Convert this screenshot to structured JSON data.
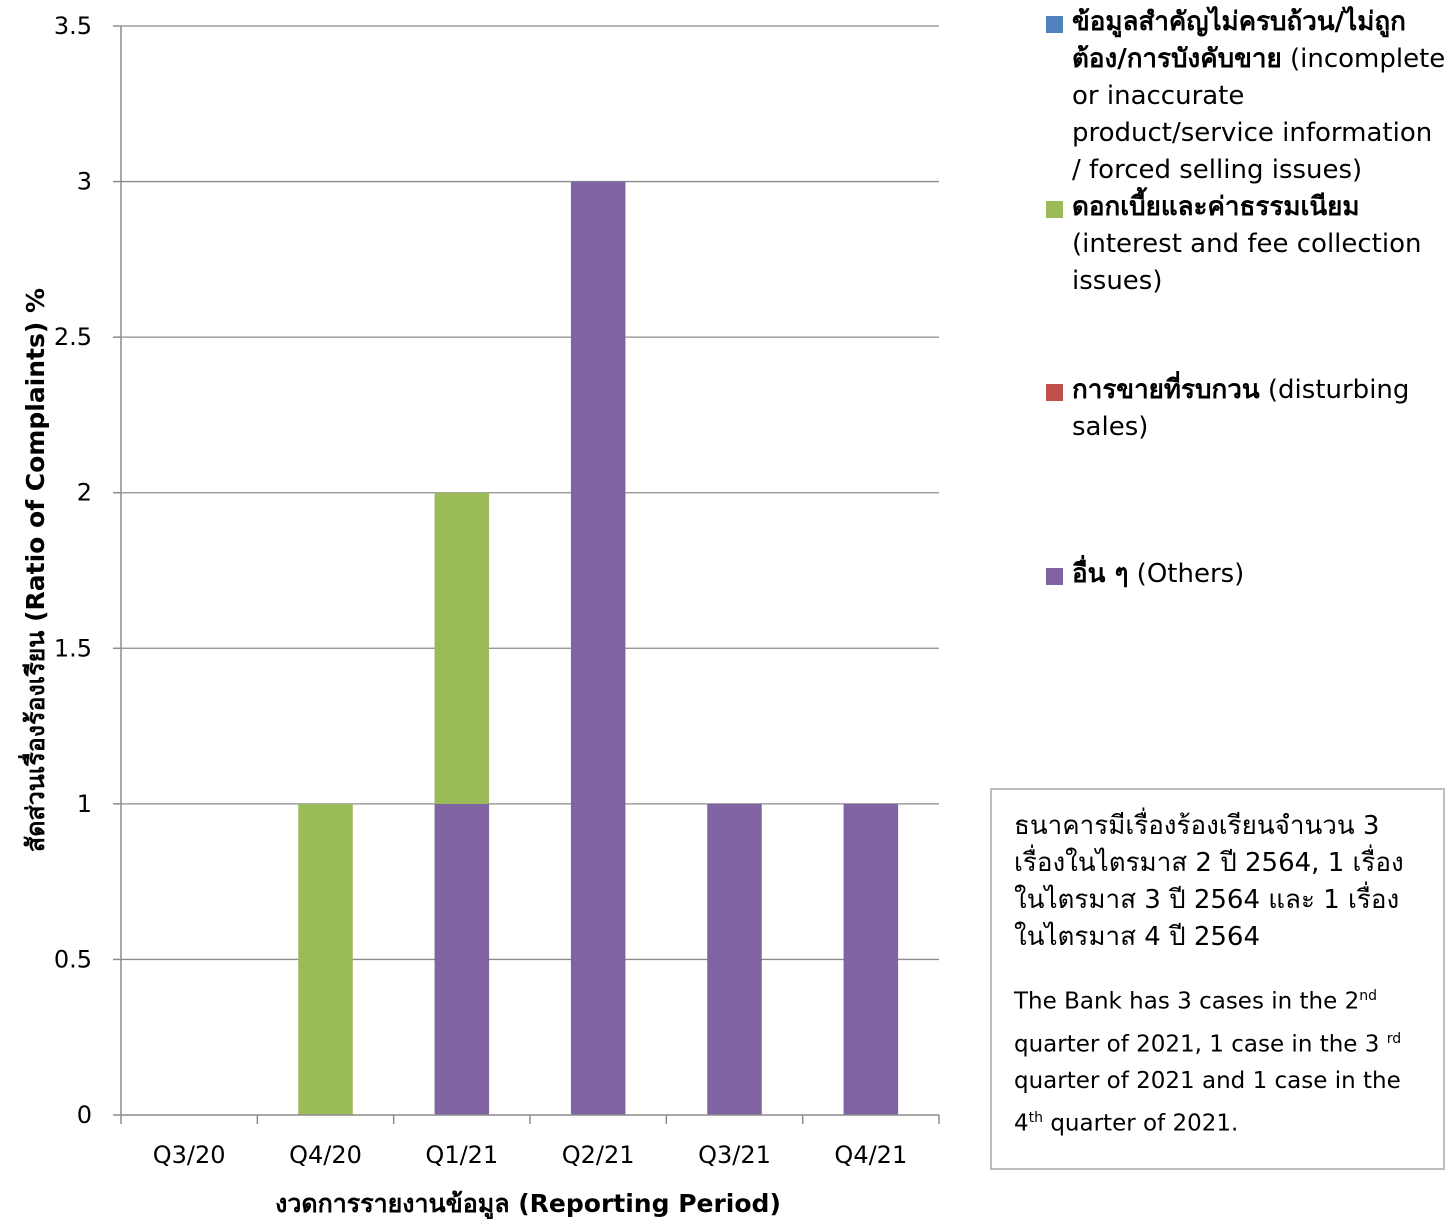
{
  "chart_data": {
    "type": "bar",
    "stacked": true,
    "categories": [
      "Q3/20",
      "Q4/20",
      "Q1/21",
      "Q2/21",
      "Q3/21",
      "Q4/21"
    ],
    "series": [
      {
        "name": "ข้อมูลสำคัญไม่ครบถ้วน/ไม่ถูกต้อง/การบังคับขาย (incomplete or inaccurate product/service information / forced selling issues)",
        "color": "#4f81bd",
        "values": [
          0,
          0,
          0,
          0,
          0,
          0
        ]
      },
      {
        "name": "ดอกเบี้ยและค่าธรรมเนียม (interest and fee collection issues)",
        "color": "#9bbb59",
        "values": [
          0,
          1,
          1,
          0,
          0,
          0
        ]
      },
      {
        "name": "การขายที่รบกวน (disturbing sales)",
        "color": "#c0504d",
        "values": [
          0,
          0,
          0,
          0,
          0,
          0
        ]
      },
      {
        "name": "อื่น ๆ (Others)",
        "color": "#8064a2",
        "values": [
          0,
          0,
          1,
          3,
          1,
          1
        ]
      }
    ],
    "stack_order": [
      3,
      1,
      0,
      2
    ],
    "ylim": [
      0,
      3.5
    ],
    "yticks": [
      "0",
      "0.5",
      "1",
      "1.5",
      "2",
      "2.5",
      "3",
      "3.5"
    ],
    "ylabel": "สัดส่วนเรื่องร้องเรียน (Ratio of Complaints) %",
    "xlabel": "งวดการรายงานข้อมูล (Reporting Period)",
    "grid": true,
    "legend_position": "right"
  },
  "legend": [
    {
      "thai": "ข้อมูลสำคัญไม่ครบถ้วน/ไม่ถูกต้อง/การบังคับขาย",
      "english": " (incomplete or inaccurate product/service information / forced selling issues)",
      "color": "#4f81bd"
    },
    {
      "thai": "ดอกเบี้ยและค่าธรรมเนียม",
      "english": " (interest and fee collection issues)",
      "color": "#9bbb59"
    },
    {
      "thai": "การขายที่รบกวน",
      "english": " (disturbing sales)",
      "color": "#c0504d"
    },
    {
      "thai": "อื่น ๆ",
      "english": " (Others)",
      "color": "#8064a2"
    }
  ],
  "note": {
    "thai": "ธนาคารมีเรื่องร้องเรียนจำนวน 3 เรื่องในไตรมาส 2 ปี 2564, 1 เรื่องในไตรมาส 3 ปี 2564 และ 1 เรื่องในไตรมาส 4 ปี 2564",
    "en_1": "The Bank has  3 cases in the 2",
    "en_sup_1": "nd",
    "en_2": " quarter of 2021, 1 case in the 3 ",
    "en_sup_2": "rd",
    "en_3": " quarter of 2021 and 1 case in the 4",
    "en_sup_3": "th",
    "en_4": " quarter of 2021."
  }
}
